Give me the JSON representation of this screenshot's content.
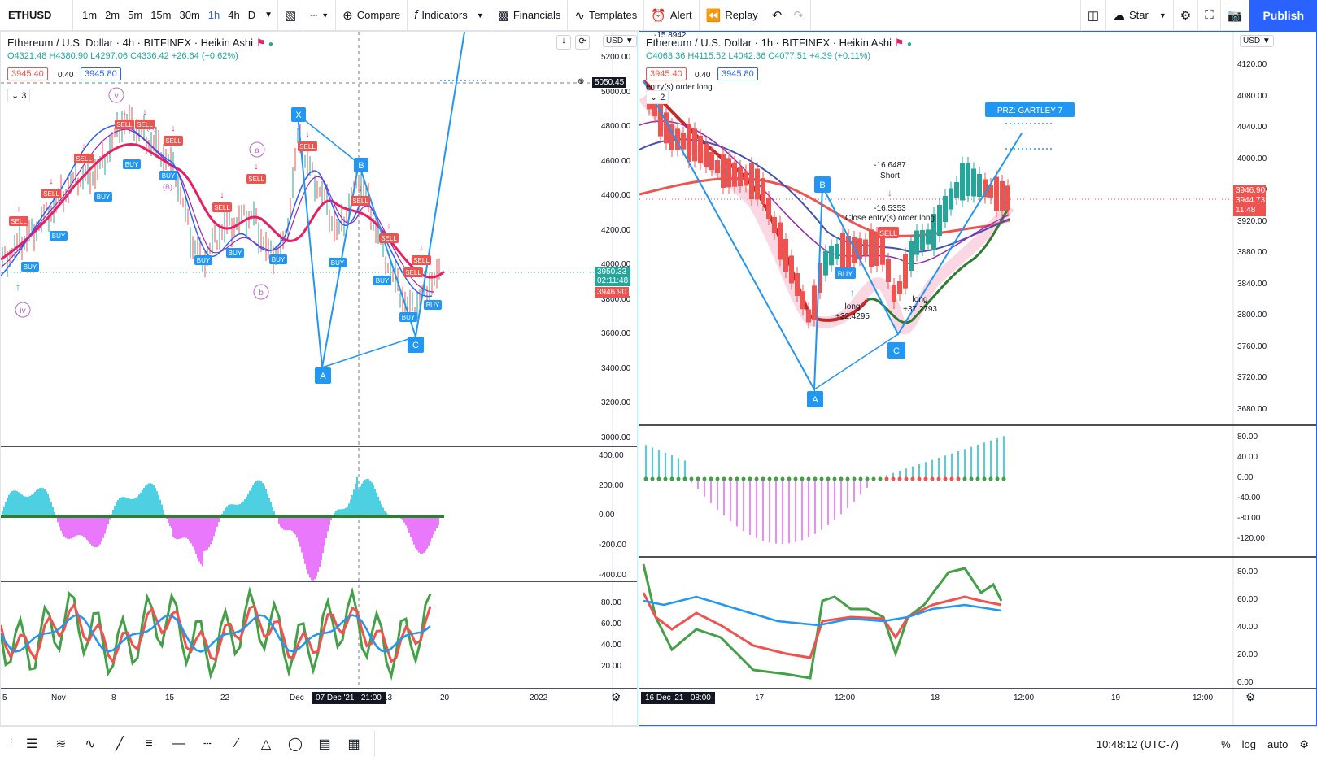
{
  "toolbar": {
    "symbol": "ETHUSD",
    "intervals": [
      "1m",
      "2m",
      "5m",
      "15m",
      "30m",
      "1h",
      "4h",
      "D"
    ],
    "active_interval": "1h",
    "compare": "Compare",
    "indicators": "Indicators",
    "financials": "Financials",
    "templates": "Templates",
    "alert": "Alert",
    "replay": "Replay",
    "star": "Star",
    "publish": "Publish"
  },
  "left_chart": {
    "title": "Ethereum / U.S. Dollar · 4h · BITFINEX · Heikin Ashi",
    "ohlc": "O4321.48 H4380.90 L4297.06 C4336.42 +26.64 (+0.62%)",
    "sell_price": "3945.40",
    "spread": "0.40",
    "buy_price": "3945.80",
    "indicator_count": "3",
    "currency": "USD",
    "price_labels": [
      "5200.00",
      "5000.00",
      "4800.00",
      "4600.00",
      "4400.00",
      "4200.00",
      "4000.00",
      "3800.00",
      "3600.00",
      "3400.00",
      "3200.00",
      "3000.00"
    ],
    "crosshair_price": "5050.45",
    "current_price": "3950.33",
    "countdown": "02:11:48",
    "bid_price": "3946.90",
    "osc_labels": [
      "400.00",
      "200.00",
      "0.00",
      "-200.00",
      "-400.00"
    ],
    "rsi_labels": [
      "80.00",
      "60.00",
      "40.00",
      "20.00"
    ],
    "time_labels": [
      "5",
      "Nov",
      "8",
      "15",
      "22",
      "Dec",
      "13",
      "20",
      "2022"
    ],
    "crosshair_time": "07 Dec '21   21:00",
    "wave_labels": [
      "iv",
      "v",
      "a",
      "b",
      "(B)",
      "(A)"
    ],
    "pattern_points": [
      "X",
      "A",
      "B",
      "C"
    ],
    "signals": [
      "SELL",
      "BUY"
    ]
  },
  "right_chart": {
    "title": "Ethereum / U.S. Dollar · 1h · BITFINEX · Heikin Ashi",
    "ohlc": "O4063.36 H4115.52 L4042.36 C4077.51 +4.39 (+0.11%)",
    "sell_price": "3945.40",
    "spread": "0.40",
    "buy_price": "3945.80",
    "indicator_count": "2",
    "currency": "USD",
    "top_note": "-15.8942",
    "order_note": "entry(s) order long",
    "price_labels": [
      "4120.00",
      "4080.00",
      "4040.00",
      "4000.00",
      "3960.00",
      "3920.00",
      "3880.00",
      "3840.00",
      "3800.00",
      "3760.00",
      "3720.00",
      "3680.00"
    ],
    "current_price": "3946.90",
    "price2": "3944.73",
    "countdown": "11:48",
    "prz_label": "PRZ: GARTLEY 7",
    "short_label": "-16.6487",
    "short_text": "Short",
    "close_value": "-16.5353",
    "close_text": "Close entry(s) order long",
    "long1_text": "long",
    "long1_value": "+32.4295",
    "long2_text": "long",
    "long2_value": "+37.2793",
    "pattern_points": [
      "A",
      "B",
      "C"
    ],
    "signals": [
      "BUY",
      "SELL"
    ],
    "osc_labels": [
      "80.00",
      "40.00",
      "0.00",
      "-40.00",
      "-80.00",
      "-120.00"
    ],
    "rsi_labels": [
      "80.00",
      "60.00",
      "40.00",
      "20.00",
      "0.00"
    ],
    "crosshair_time": "16 Dec '21   08:00",
    "time_labels": [
      "17",
      "12:00",
      "18",
      "12:00",
      "19",
      "12:00"
    ]
  },
  "status": {
    "time": "10:48:12 (UTC-7)",
    "percent": "%",
    "log": "log",
    "auto": "auto"
  },
  "colors": {
    "accent": "#2962ff",
    "up": "#26a69a",
    "down": "#ef5350",
    "sell_tag": "#ef5350",
    "buy_tag": "#2196f3"
  }
}
